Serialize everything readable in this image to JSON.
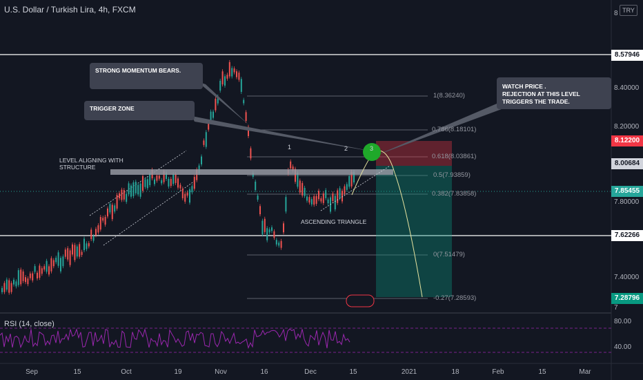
{
  "header": {
    "title": "U.S. Dollar / Turkish Lira, 4h, FXCM",
    "currency_button": "TRY"
  },
  "price_tags": [
    {
      "label": "8.57946",
      "bg": "#ffffff",
      "fg": "#131722"
    },
    {
      "label": "8.12200",
      "bg": "#f23645",
      "fg": "#ffffff"
    },
    {
      "label": "8.00684",
      "bg": "#d1d4dc",
      "fg": "#131722"
    },
    {
      "label": "7.85455",
      "bg": "#26a69a",
      "fg": "#ffffff"
    },
    {
      "label": "7.62266",
      "bg": "#ffffff",
      "fg": "#131722"
    },
    {
      "label": "7.28796",
      "bg": "#089981",
      "fg": "#ffffff"
    }
  ],
  "y_axis": [
    "8",
    "8.40000",
    "8.20000",
    "7.80000",
    "7.40000",
    "7"
  ],
  "rsi_axis": [
    "80.00",
    "40.00"
  ],
  "x_axis": [
    "Sep",
    "15",
    "Oct",
    "19",
    "Nov",
    "16",
    "Dec",
    "15",
    "2021",
    "18",
    "Feb",
    "15",
    "Mar"
  ],
  "fib_levels": [
    "1(8.36240)",
    "0.786(8.18101)",
    "0.618(8.03861)",
    "0.5(7.93859)",
    "0.382(7.83858)",
    "0(7.51479)",
    "-0.27(7.28593)"
  ],
  "callouts": {
    "momentum": "STRONG MOMENTUM BEARS.",
    "trigger": "TRIGGER ZONE",
    "watch_line1": "WATCH PRICE .",
    "watch_line2": "REJECTION AT THIS LEVEL TRIGGERS THE TRADE."
  },
  "labels": {
    "level": "LEVEL ALIGNING WITH STRUCTURE",
    "triangle": "ASCENDING TRIANGLE",
    "point1": "1",
    "point2": "2",
    "point3": "3"
  },
  "rsi": {
    "label": "RSI (14, close)"
  },
  "colors": {
    "bg": "#131722",
    "up": "#26a69a",
    "down": "#ef5350",
    "rsi": "#9c27b0"
  }
}
